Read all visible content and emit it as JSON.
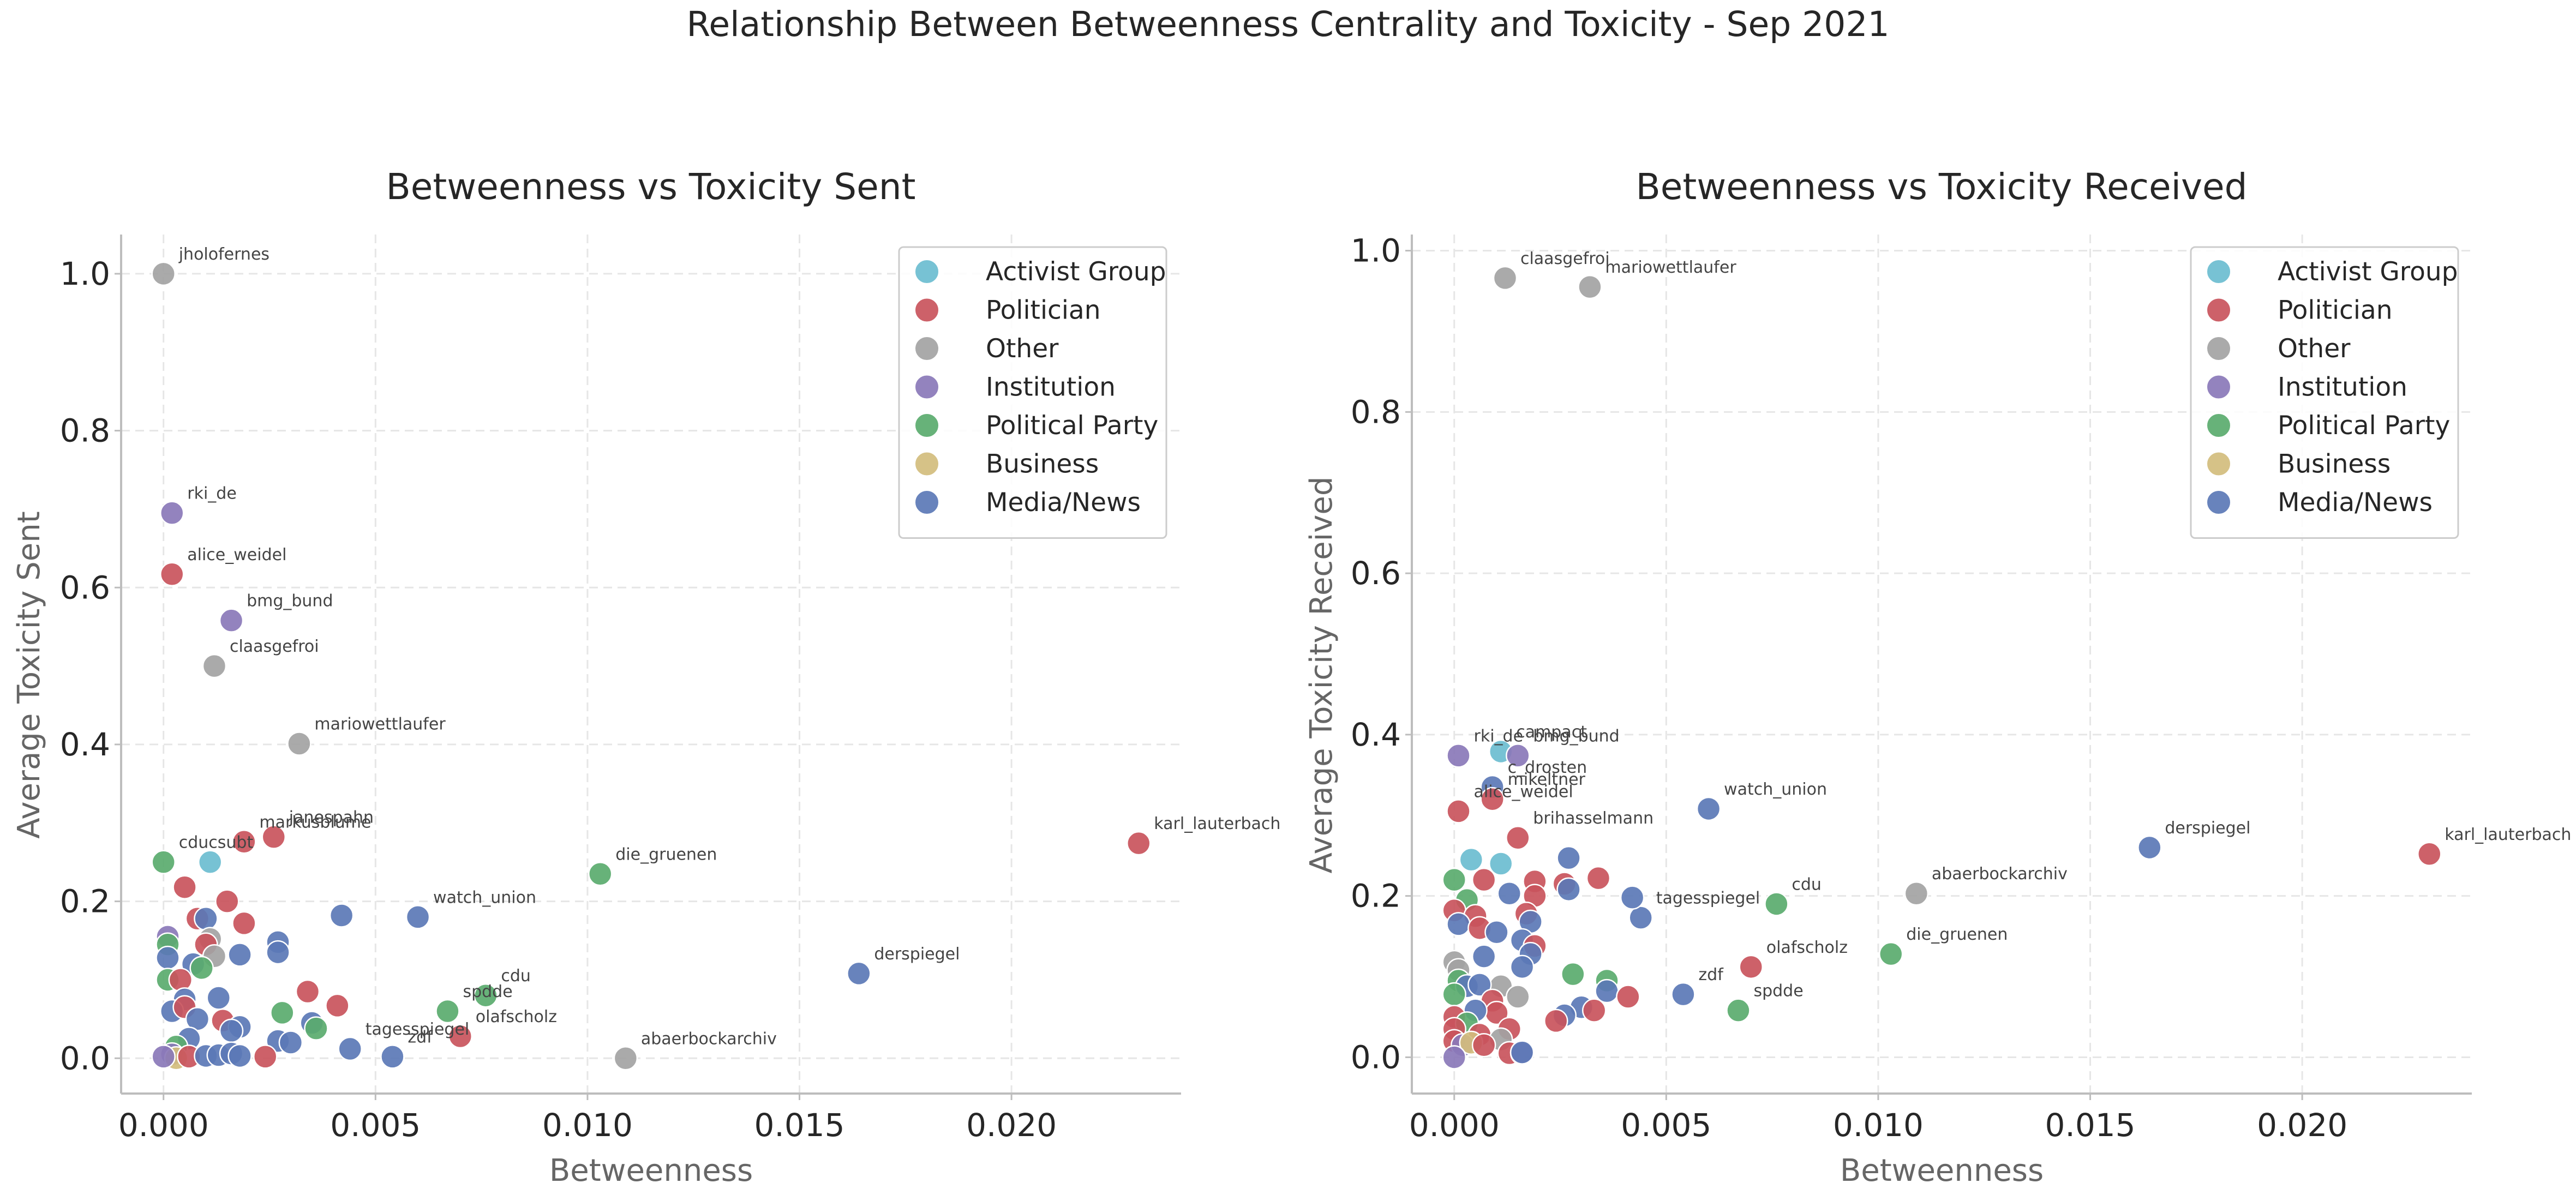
{
  "suptitle": "Relationship Between Betweenness Centrality and Toxicity - Sep 2021",
  "categories": [
    {
      "name": "Activist Group",
      "color": "#6bbdd0"
    },
    {
      "name": "Politician",
      "color": "#c9545c"
    },
    {
      "name": "Other",
      "color": "#a3a3a3"
    },
    {
      "name": "Institution",
      "color": "#8a78b8"
    },
    {
      "name": "Political Party",
      "color": "#5aab6e"
    },
    {
      "name": "Business",
      "color": "#d2bd7d"
    },
    {
      "name": "Media/News",
      "color": "#5b78b6"
    }
  ],
  "chart_data": [
    {
      "type": "scatter",
      "title": "Betweenness vs Toxicity Sent",
      "xlabel": "Betweenness",
      "ylabel": "Average Toxicity Sent",
      "xlim": [
        -0.001,
        0.024
      ],
      "ylim": [
        -0.045,
        1.05
      ],
      "xticks": [
        0.0,
        0.005,
        0.01,
        0.015,
        0.02
      ],
      "xtick_labels": [
        "0.000",
        "0.005",
        "0.010",
        "0.015",
        "0.020"
      ],
      "yticks": [
        0.0,
        0.2,
        0.4,
        0.6,
        0.8,
        1.0
      ],
      "ytick_labels": [
        "0.0",
        "0.2",
        "0.4",
        "0.6",
        "0.8",
        "1.0"
      ],
      "grid": true,
      "legend": "upper-right",
      "points": [
        {
          "x": 0.0,
          "y": 1.0,
          "cat": "Other",
          "label": "jholofernes"
        },
        {
          "x": 0.0002,
          "y": 0.695,
          "cat": "Institution",
          "label": "rki_de"
        },
        {
          "x": 0.0002,
          "y": 0.617,
          "cat": "Politician",
          "label": "alice_weidel"
        },
        {
          "x": 0.0016,
          "y": 0.558,
          "cat": "Institution",
          "label": "bmg_bund"
        },
        {
          "x": 0.0012,
          "y": 0.5,
          "cat": "Other",
          "label": "claasgefroi"
        },
        {
          "x": 0.0032,
          "y": 0.401,
          "cat": "Other",
          "label": "mariowettlaufer"
        },
        {
          "x": 0.023,
          "y": 0.274,
          "cat": "Politician",
          "label": "karl_lauterbach"
        },
        {
          "x": 0.0026,
          "y": 0.282,
          "cat": "Politician",
          "label": "janespahn"
        },
        {
          "x": 0.0019,
          "y": 0.276,
          "cat": "Politician",
          "label": "markusblume"
        },
        {
          "x": 0.0,
          "y": 0.25,
          "cat": "Political Party",
          "label": "cducsubt"
        },
        {
          "x": 0.0011,
          "y": 0.25,
          "cat": "Activist Group",
          "label": ""
        },
        {
          "x": 0.0103,
          "y": 0.235,
          "cat": "Political Party",
          "label": "die_gruenen"
        },
        {
          "x": 0.006,
          "y": 0.18,
          "cat": "Media/News",
          "label": "watch_union"
        },
        {
          "x": 0.0164,
          "y": 0.108,
          "cat": "Media/News",
          "label": "derspiegel"
        },
        {
          "x": 0.0076,
          "y": 0.08,
          "cat": "Political Party",
          "label": "cdu"
        },
        {
          "x": 0.0067,
          "y": 0.06,
          "cat": "Political Party",
          "label": "spdde"
        },
        {
          "x": 0.007,
          "y": 0.028,
          "cat": "Politician",
          "label": "olafscholz"
        },
        {
          "x": 0.0044,
          "y": 0.012,
          "cat": "Media/News",
          "label": "tagesspiegel"
        },
        {
          "x": 0.0054,
          "y": 0.002,
          "cat": "Media/News",
          "label": "zdf"
        },
        {
          "x": 0.0109,
          "y": 0.0,
          "cat": "Other",
          "label": "abaerbockarchiv"
        },
        {
          "x": 0.0005,
          "y": 0.218,
          "cat": "Politician",
          "label": ""
        },
        {
          "x": 0.0008,
          "y": 0.178,
          "cat": "Politician",
          "label": ""
        },
        {
          "x": 0.001,
          "y": 0.178,
          "cat": "Media/News",
          "label": ""
        },
        {
          "x": 0.0015,
          "y": 0.2,
          "cat": "Politician",
          "label": ""
        },
        {
          "x": 0.0019,
          "y": 0.172,
          "cat": "Politician",
          "label": ""
        },
        {
          "x": 0.0042,
          "y": 0.182,
          "cat": "Media/News",
          "label": ""
        },
        {
          "x": 0.0027,
          "y": 0.148,
          "cat": "Media/News",
          "label": ""
        },
        {
          "x": 0.0027,
          "y": 0.135,
          "cat": "Media/News",
          "label": ""
        },
        {
          "x": 0.0018,
          "y": 0.132,
          "cat": "Media/News",
          "label": ""
        },
        {
          "x": 0.0001,
          "y": 0.155,
          "cat": "Institution",
          "label": ""
        },
        {
          "x": 0.0001,
          "y": 0.145,
          "cat": "Political Party",
          "label": ""
        },
        {
          "x": 0.0011,
          "y": 0.152,
          "cat": "Other",
          "label": ""
        },
        {
          "x": 0.001,
          "y": 0.145,
          "cat": "Politician",
          "label": ""
        },
        {
          "x": 0.0012,
          "y": 0.13,
          "cat": "Other",
          "label": ""
        },
        {
          "x": 0.0001,
          "y": 0.128,
          "cat": "Media/News",
          "label": ""
        },
        {
          "x": 0.0007,
          "y": 0.12,
          "cat": "Media/News",
          "label": ""
        },
        {
          "x": 0.0009,
          "y": 0.115,
          "cat": "Political Party",
          "label": ""
        },
        {
          "x": 0.0001,
          "y": 0.1,
          "cat": "Political Party",
          "label": ""
        },
        {
          "x": 0.0004,
          "y": 0.1,
          "cat": "Politician",
          "label": ""
        },
        {
          "x": 0.0034,
          "y": 0.085,
          "cat": "Politician",
          "label": ""
        },
        {
          "x": 0.0041,
          "y": 0.067,
          "cat": "Politician",
          "label": ""
        },
        {
          "x": 0.0028,
          "y": 0.058,
          "cat": "Political Party",
          "label": ""
        },
        {
          "x": 0.0013,
          "y": 0.077,
          "cat": "Media/News",
          "label": ""
        },
        {
          "x": 0.0005,
          "y": 0.075,
          "cat": "Media/News",
          "label": ""
        },
        {
          "x": 0.0002,
          "y": 0.06,
          "cat": "Media/News",
          "label": ""
        },
        {
          "x": 0.0005,
          "y": 0.065,
          "cat": "Politician",
          "label": ""
        },
        {
          "x": 0.0008,
          "y": 0.05,
          "cat": "Media/News",
          "label": ""
        },
        {
          "x": 0.0014,
          "y": 0.048,
          "cat": "Politician",
          "label": ""
        },
        {
          "x": 0.0018,
          "y": 0.04,
          "cat": "Media/News",
          "label": ""
        },
        {
          "x": 0.0035,
          "y": 0.045,
          "cat": "Media/News",
          "label": ""
        },
        {
          "x": 0.0036,
          "y": 0.038,
          "cat": "Political Party",
          "label": ""
        },
        {
          "x": 0.0016,
          "y": 0.035,
          "cat": "Media/News",
          "label": ""
        },
        {
          "x": 0.0006,
          "y": 0.025,
          "cat": "Media/News",
          "label": ""
        },
        {
          "x": 0.0027,
          "y": 0.022,
          "cat": "Media/News",
          "label": ""
        },
        {
          "x": 0.0003,
          "y": 0.015,
          "cat": "Political Party",
          "label": ""
        },
        {
          "x": 0.003,
          "y": 0.02,
          "cat": "Media/News",
          "label": ""
        },
        {
          "x": 0.0002,
          "y": 0.005,
          "cat": "Institution",
          "label": ""
        },
        {
          "x": 0.0003,
          "y": 0.0,
          "cat": "Business",
          "label": ""
        },
        {
          "x": 0.0006,
          "y": 0.002,
          "cat": "Politician",
          "label": ""
        },
        {
          "x": 0.001,
          "y": 0.003,
          "cat": "Media/News",
          "label": ""
        },
        {
          "x": 0.0013,
          "y": 0.004,
          "cat": "Media/News",
          "label": ""
        },
        {
          "x": 0.0016,
          "y": 0.006,
          "cat": "Media/News",
          "label": ""
        },
        {
          "x": 0.0018,
          "y": 0.003,
          "cat": "Media/News",
          "label": ""
        },
        {
          "x": 0.0024,
          "y": 0.002,
          "cat": "Politician",
          "label": ""
        },
        {
          "x": 0.0,
          "y": 0.002,
          "cat": "Institution",
          "label": ""
        }
      ]
    },
    {
      "type": "scatter",
      "title": "Betweenness vs Toxicity Received",
      "xlabel": "Betweenness",
      "ylabel": "Average Toxicity Received",
      "xlim": [
        -0.001,
        0.024
      ],
      "ylim": [
        -0.045,
        1.02
      ],
      "xticks": [
        0.0,
        0.005,
        0.01,
        0.015,
        0.02
      ],
      "xtick_labels": [
        "0.000",
        "0.005",
        "0.010",
        "0.015",
        "0.020"
      ],
      "yticks": [
        0.0,
        0.2,
        0.4,
        0.6,
        0.8,
        1.0
      ],
      "ytick_labels": [
        "0.0",
        "0.2",
        "0.4",
        "0.6",
        "0.8",
        "1.0"
      ],
      "grid": true,
      "legend": "upper-right",
      "points": [
        {
          "x": 0.0012,
          "y": 0.966,
          "cat": "Other",
          "label": "claasgefroi"
        },
        {
          "x": 0.0032,
          "y": 0.955,
          "cat": "Other",
          "label": "mariowettlaufer"
        },
        {
          "x": 0.0001,
          "y": 0.374,
          "cat": "Institution",
          "label": "rki_de"
        },
        {
          "x": 0.0011,
          "y": 0.379,
          "cat": "Activist Group",
          "label": "campact"
        },
        {
          "x": 0.0015,
          "y": 0.374,
          "cat": "Institution",
          "label": "bmg_bund"
        },
        {
          "x": 0.0009,
          "y": 0.335,
          "cat": "Media/News",
          "label": "c_drosten"
        },
        {
          "x": 0.0009,
          "y": 0.32,
          "cat": "Politician",
          "label": "mikeltner"
        },
        {
          "x": 0.0001,
          "y": 0.305,
          "cat": "Politician",
          "label": "alice_weidel"
        },
        {
          "x": 0.006,
          "y": 0.308,
          "cat": "Media/News",
          "label": "watch_union"
        },
        {
          "x": 0.0015,
          "y": 0.272,
          "cat": "Politician",
          "label": "brihasselmann"
        },
        {
          "x": 0.0164,
          "y": 0.26,
          "cat": "Media/News",
          "label": "derspiegel"
        },
        {
          "x": 0.023,
          "y": 0.252,
          "cat": "Politician",
          "label": "karl_lauterbach"
        },
        {
          "x": 0.0109,
          "y": 0.203,
          "cat": "Other",
          "label": "abaerbockarchiv"
        },
        {
          "x": 0.0076,
          "y": 0.19,
          "cat": "Political Party",
          "label": "cdu"
        },
        {
          "x": 0.0044,
          "y": 0.173,
          "cat": "Media/News",
          "label": "tagesspiegel"
        },
        {
          "x": 0.0103,
          "y": 0.128,
          "cat": "Political Party",
          "label": "die_gruenen"
        },
        {
          "x": 0.007,
          "y": 0.112,
          "cat": "Politician",
          "label": "olafscholz"
        },
        {
          "x": 0.0054,
          "y": 0.078,
          "cat": "Media/News",
          "label": "zdf"
        },
        {
          "x": 0.0067,
          "y": 0.058,
          "cat": "Political Party",
          "label": "spdde"
        },
        {
          "x": 0.0004,
          "y": 0.245,
          "cat": "Activist Group",
          "label": ""
        },
        {
          "x": 0.0011,
          "y": 0.24,
          "cat": "Activist Group",
          "label": ""
        },
        {
          "x": 0.0027,
          "y": 0.247,
          "cat": "Media/News",
          "label": ""
        },
        {
          "x": 0.0034,
          "y": 0.222,
          "cat": "Politician",
          "label": ""
        },
        {
          "x": 0.0,
          "y": 0.22,
          "cat": "Political Party",
          "label": ""
        },
        {
          "x": 0.0007,
          "y": 0.22,
          "cat": "Politician",
          "label": ""
        },
        {
          "x": 0.0019,
          "y": 0.218,
          "cat": "Politician",
          "label": ""
        },
        {
          "x": 0.0026,
          "y": 0.215,
          "cat": "Politician",
          "label": ""
        },
        {
          "x": 0.0027,
          "y": 0.208,
          "cat": "Media/News",
          "label": ""
        },
        {
          "x": 0.0013,
          "y": 0.203,
          "cat": "Media/News",
          "label": ""
        },
        {
          "x": 0.0019,
          "y": 0.2,
          "cat": "Politician",
          "label": ""
        },
        {
          "x": 0.0042,
          "y": 0.198,
          "cat": "Media/News",
          "label": ""
        },
        {
          "x": 0.0003,
          "y": 0.195,
          "cat": "Political Party",
          "label": ""
        },
        {
          "x": 0.0,
          "y": 0.182,
          "cat": "Politician",
          "label": ""
        },
        {
          "x": 0.0005,
          "y": 0.175,
          "cat": "Politician",
          "label": ""
        },
        {
          "x": 0.0017,
          "y": 0.178,
          "cat": "Politician",
          "label": ""
        },
        {
          "x": 0.0018,
          "y": 0.168,
          "cat": "Media/News",
          "label": ""
        },
        {
          "x": 0.0001,
          "y": 0.165,
          "cat": "Media/News",
          "label": ""
        },
        {
          "x": 0.0006,
          "y": 0.16,
          "cat": "Politician",
          "label": ""
        },
        {
          "x": 0.001,
          "y": 0.155,
          "cat": "Media/News",
          "label": ""
        },
        {
          "x": 0.0016,
          "y": 0.145,
          "cat": "Media/News",
          "label": ""
        },
        {
          "x": 0.0019,
          "y": 0.138,
          "cat": "Politician",
          "label": ""
        },
        {
          "x": 0.0018,
          "y": 0.128,
          "cat": "Media/News",
          "label": ""
        },
        {
          "x": 0.0007,
          "y": 0.125,
          "cat": "Media/News",
          "label": ""
        },
        {
          "x": 0.0,
          "y": 0.118,
          "cat": "Other",
          "label": ""
        },
        {
          "x": 0.0001,
          "y": 0.108,
          "cat": "Other",
          "label": ""
        },
        {
          "x": 0.0016,
          "y": 0.112,
          "cat": "Media/News",
          "label": ""
        },
        {
          "x": 0.0028,
          "y": 0.103,
          "cat": "Political Party",
          "label": ""
        },
        {
          "x": 0.0036,
          "y": 0.095,
          "cat": "Political Party",
          "label": ""
        },
        {
          "x": 0.0001,
          "y": 0.095,
          "cat": "Political Party",
          "label": ""
        },
        {
          "x": 0.0011,
          "y": 0.088,
          "cat": "Other",
          "label": ""
        },
        {
          "x": 0.0003,
          "y": 0.088,
          "cat": "Media/News",
          "label": ""
        },
        {
          "x": 0.0006,
          "y": 0.09,
          "cat": "Media/News",
          "label": ""
        },
        {
          "x": 0.0036,
          "y": 0.082,
          "cat": "Media/News",
          "label": ""
        },
        {
          "x": 0.0041,
          "y": 0.075,
          "cat": "Politician",
          "label": ""
        },
        {
          "x": 0.0015,
          "y": 0.075,
          "cat": "Other",
          "label": ""
        },
        {
          "x": 0.0,
          "y": 0.078,
          "cat": "Political Party",
          "label": ""
        },
        {
          "x": 0.0009,
          "y": 0.07,
          "cat": "Politician",
          "label": ""
        },
        {
          "x": 0.003,
          "y": 0.062,
          "cat": "Media/News",
          "label": ""
        },
        {
          "x": 0.0033,
          "y": 0.058,
          "cat": "Politician",
          "label": ""
        },
        {
          "x": 0.001,
          "y": 0.055,
          "cat": "Politician",
          "label": ""
        },
        {
          "x": 0.0005,
          "y": 0.058,
          "cat": "Media/News",
          "label": ""
        },
        {
          "x": 0.0026,
          "y": 0.052,
          "cat": "Media/News",
          "label": ""
        },
        {
          "x": 0.0,
          "y": 0.05,
          "cat": "Politician",
          "label": ""
        },
        {
          "x": 0.0024,
          "y": 0.045,
          "cat": "Politician",
          "label": ""
        },
        {
          "x": 0.0003,
          "y": 0.042,
          "cat": "Political Party",
          "label": ""
        },
        {
          "x": 0.0,
          "y": 0.035,
          "cat": "Politician",
          "label": ""
        },
        {
          "x": 0.0013,
          "y": 0.035,
          "cat": "Politician",
          "label": ""
        },
        {
          "x": 0.0006,
          "y": 0.028,
          "cat": "Politician",
          "label": ""
        },
        {
          "x": 0.0011,
          "y": 0.022,
          "cat": "Other",
          "label": ""
        },
        {
          "x": 0.0,
          "y": 0.02,
          "cat": "Politician",
          "label": ""
        },
        {
          "x": 0.0002,
          "y": 0.015,
          "cat": "Institution",
          "label": ""
        },
        {
          "x": 0.0004,
          "y": 0.018,
          "cat": "Business",
          "label": ""
        },
        {
          "x": 0.0007,
          "y": 0.015,
          "cat": "Politician",
          "label": ""
        },
        {
          "x": 0.0013,
          "y": 0.005,
          "cat": "Politician",
          "label": ""
        },
        {
          "x": 0.0016,
          "y": 0.005,
          "cat": "Institution",
          "label": ""
        },
        {
          "x": 0.0016,
          "y": 0.006,
          "cat": "Media/News",
          "label": ""
        },
        {
          "x": 0.0,
          "y": 0.0,
          "cat": "Institution",
          "label": ""
        }
      ]
    }
  ]
}
